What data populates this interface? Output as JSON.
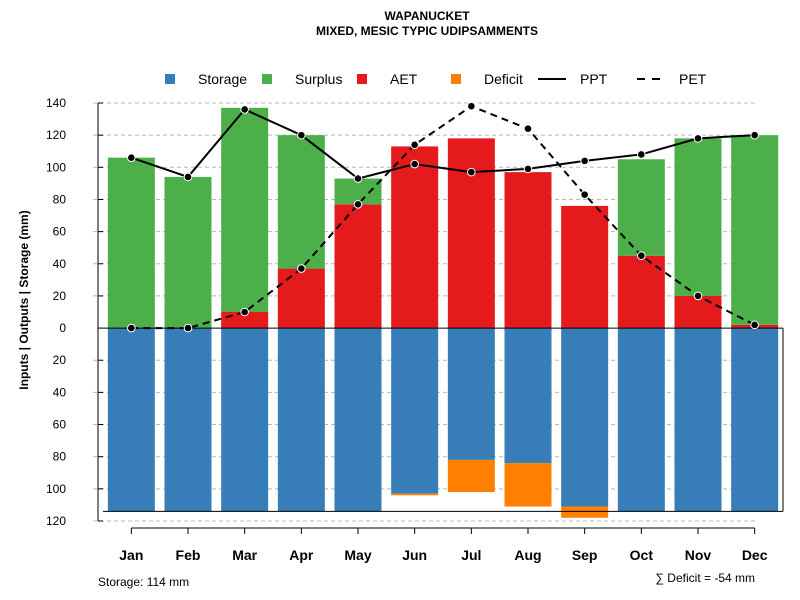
{
  "chart_data": {
    "type": "bar",
    "title": "WAPANUCKET",
    "subtitle": "MIXED, MESIC TYPIC UDIPSAMMENTS",
    "ylabel": "Inputs | Outputs | Storage    (mm)",
    "xlabel": "",
    "ylim": [
      -120,
      140
    ],
    "y_ticks": [
      140,
      120,
      100,
      80,
      60,
      40,
      20,
      0,
      -20,
      -40,
      -60,
      -80,
      -100,
      -120
    ],
    "y_tick_labels": [
      "140",
      "120",
      "100",
      "80",
      "60",
      "40",
      "20",
      "0",
      "20",
      "40",
      "60",
      "80",
      "100",
      "120"
    ],
    "grid": "horizontal dashed",
    "legend_position": "top",
    "categories": [
      "Jan",
      "Feb",
      "Mar",
      "Apr",
      "May",
      "Jun",
      "Jul",
      "Aug",
      "Sep",
      "Oct",
      "Nov",
      "Dec"
    ],
    "series": [
      {
        "name": "Storage",
        "kind": "bar-below",
        "color": "#377EB8",
        "values": [
          114,
          114,
          114,
          114,
          114,
          103,
          82,
          84,
          111,
          114,
          114,
          114
        ]
      },
      {
        "name": "Surplus",
        "kind": "bar-stack",
        "color": "#4DAF4A",
        "values": [
          106,
          94,
          127,
          83,
          16,
          0,
          0,
          0,
          0,
          60,
          98,
          118
        ]
      },
      {
        "name": "AET",
        "kind": "bar-base",
        "color": "#E41A1C",
        "values": [
          0,
          0,
          10,
          37,
          77,
          113,
          118,
          97,
          76,
          45,
          20,
          2
        ]
      },
      {
        "name": "Deficit",
        "kind": "bar-below-stack",
        "color": "#FF7F00",
        "values": [
          0,
          0,
          0,
          0,
          0,
          1,
          20,
          27,
          7,
          0,
          0,
          0
        ]
      },
      {
        "name": "PPT",
        "kind": "line-solid",
        "color": "#000000",
        "values": [
          106,
          94,
          136,
          120,
          93,
          102,
          97,
          99,
          104,
          108,
          118,
          120
        ]
      },
      {
        "name": "PET",
        "kind": "line-dashed",
        "color": "#000000",
        "values": [
          0,
          0,
          10,
          37,
          77,
          114,
          138,
          124,
          83,
          45,
          20,
          2
        ]
      }
    ],
    "storage_capacity": 114,
    "footer_left": "Storage: 114 mm",
    "footer_right": "∑ Deficit = -54 mm"
  }
}
